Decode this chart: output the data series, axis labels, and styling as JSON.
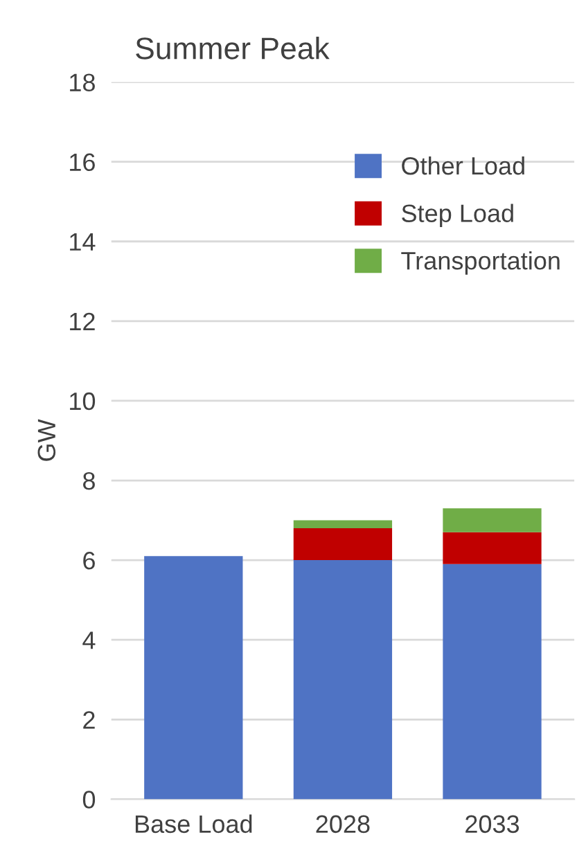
{
  "chart_data": {
    "type": "bar",
    "title": "Summer Peak",
    "ylabel": "GW",
    "categories": [
      "Base Load",
      "2028",
      "2033"
    ],
    "stacked": true,
    "series": [
      {
        "name": "Other Load",
        "color": "#4f73c4",
        "values": [
          6.1,
          6.0,
          5.9
        ]
      },
      {
        "name": "Step Load",
        "color": "#c00000",
        "values": [
          0,
          0.8,
          0.8
        ]
      },
      {
        "name": "Transportation",
        "color": "#70ad47",
        "values": [
          0,
          0.2,
          0.6
        ]
      }
    ],
    "ylim": [
      0,
      18
    ],
    "yticks": [
      0,
      2,
      4,
      6,
      8,
      10,
      12,
      14,
      16,
      18
    ],
    "grid": "y",
    "legend": "top right"
  }
}
